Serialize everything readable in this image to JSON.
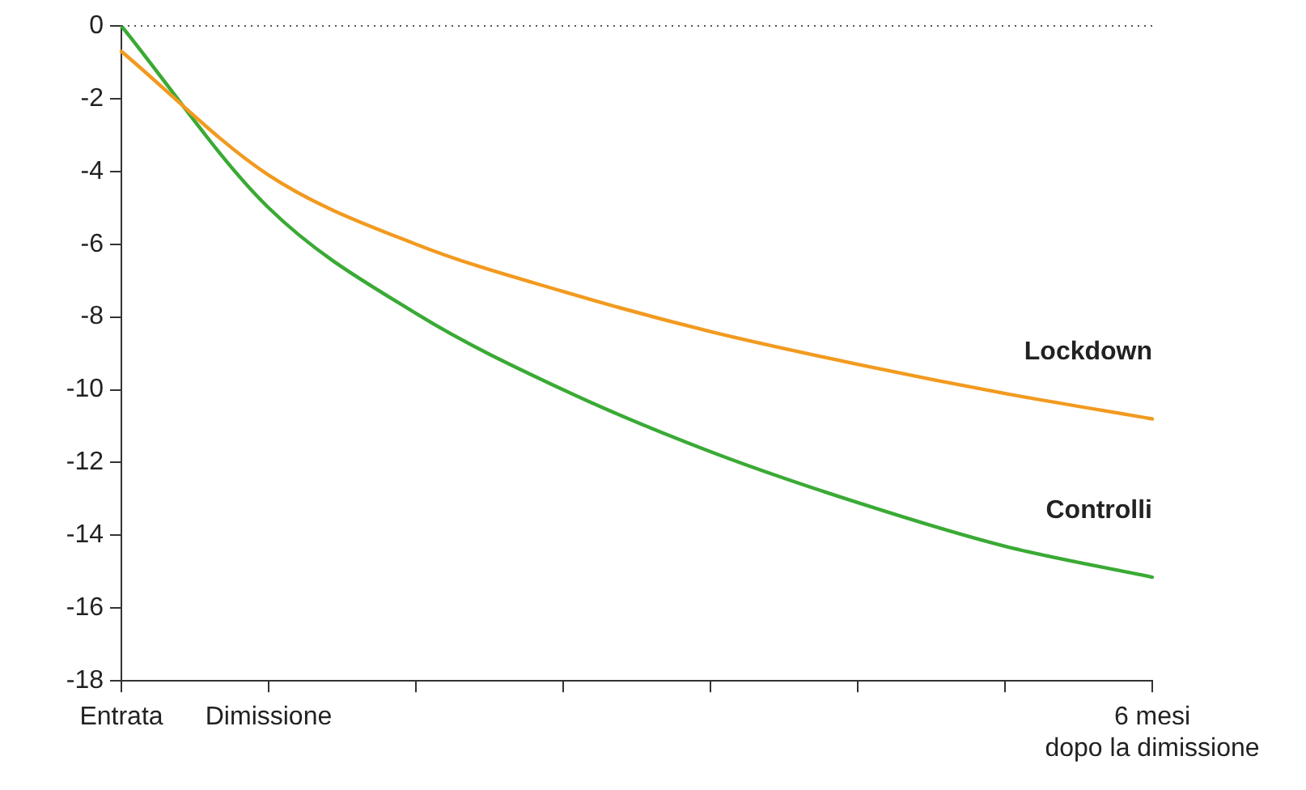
{
  "chart_data": {
    "type": "line",
    "legend": false,
    "grid": false,
    "marker": "none",
    "line_style": "solid",
    "categories": [
      "Entrata",
      "Dimissione",
      null,
      null,
      null,
      null,
      null,
      "6 mesi\ndopo la dimissione"
    ],
    "ylim": [
      -18,
      0
    ],
    "yticks": [
      0,
      -2,
      -4,
      -6,
      -8,
      -10,
      -12,
      -14,
      -16,
      -18
    ],
    "ref_lines": [
      {
        "axis": "y",
        "value": 0,
        "line_style": "dotted",
        "color": "#555555"
      }
    ],
    "series": [
      {
        "name": "Lockdown",
        "color": "#f29a1f",
        "values": [
          -0.7,
          -4.1,
          -6.0,
          -7.3,
          -8.4,
          -9.3,
          -10.1,
          -10.8
        ]
      },
      {
        "name": "Controlli",
        "color": "#3aaa35",
        "values": [
          0,
          -5.0,
          -7.9,
          -10.0,
          -11.7,
          -13.1,
          -14.3,
          -15.15
        ]
      }
    ]
  }
}
